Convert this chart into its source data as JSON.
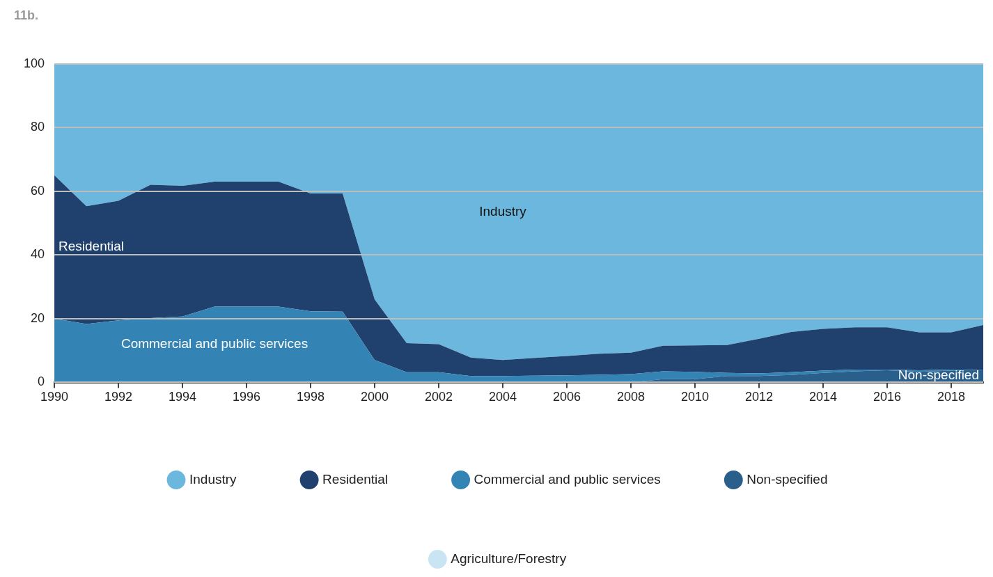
{
  "chart_data": {
    "type": "area",
    "title": "11b.",
    "stacked": true,
    "x": [
      1990,
      1991,
      1992,
      1993,
      1994,
      1995,
      1996,
      1997,
      1998,
      1999,
      2000,
      2001,
      2002,
      2003,
      2004,
      2005,
      2006,
      2007,
      2008,
      2009,
      2010,
      2011,
      2012,
      2013,
      2014,
      2015,
      2016,
      2017,
      2018,
      2019
    ],
    "xlim": [
      1990,
      2019
    ],
    "xticks": [
      1990,
      1992,
      1994,
      1996,
      1998,
      2000,
      2002,
      2004,
      2006,
      2008,
      2010,
      2012,
      2014,
      2016,
      2018
    ],
    "ylim": [
      0,
      100
    ],
    "yticks": [
      0,
      20,
      40,
      60,
      80,
      100
    ],
    "grid": "y",
    "legend": "bottom",
    "series": [
      {
        "name": "Agriculture/Forestry",
        "color": "#c9e5f4",
        "values": [
          null,
          null,
          null,
          null,
          null,
          null,
          null,
          null,
          null,
          null,
          null,
          null,
          null,
          null,
          null,
          null,
          null,
          null,
          null,
          null,
          null,
          null,
          null,
          null,
          null,
          null,
          null,
          null,
          null,
          null
        ]
      },
      {
        "name": "Non-specified",
        "color": "#2a5f8c",
        "values": [
          0,
          0,
          0,
          0,
          0,
          0,
          0,
          0,
          0,
          0,
          0,
          0,
          0,
          0,
          0,
          0,
          0,
          0,
          0,
          1,
          1,
          2,
          2,
          2.3,
          3,
          3.5,
          3.8,
          3.3,
          3.7,
          4
        ]
      },
      {
        "name": "Commercial and public services",
        "color": "#3383b4",
        "values": [
          20,
          18.3,
          19.5,
          20.2,
          20.7,
          23.8,
          23.8,
          23.8,
          22.3,
          22.2,
          7,
          3.2,
          3.2,
          2,
          2,
          2.1,
          2.2,
          2.4,
          2.6,
          2.5,
          2.3,
          1,
          0.8,
          0.9,
          0.7,
          0.5,
          0.2,
          0.5,
          0.3,
          0
        ]
      },
      {
        "name": "Residential",
        "color": "#20416e",
        "values": [
          45,
          37,
          37.5,
          41.8,
          41,
          39.2,
          39.2,
          39.2,
          37,
          37.1,
          19,
          9.1,
          8.8,
          5.8,
          5,
          5.6,
          6.1,
          6.6,
          6.7,
          8,
          8.3,
          8.7,
          10.9,
          12.6,
          13.1,
          13.3,
          13.3,
          11.9,
          11.7,
          14
        ]
      },
      {
        "name": "Industry",
        "color": "#6cb7de",
        "values": [
          35,
          44.7,
          43,
          38,
          38.3,
          37,
          37,
          37,
          40.7,
          40.7,
          74,
          87.7,
          88,
          92.2,
          93,
          92.3,
          91.7,
          91,
          90.7,
          88.5,
          88.4,
          88.3,
          86.3,
          84.2,
          83.2,
          82.7,
          82.7,
          84.3,
          84.3,
          82
        ]
      }
    ]
  }
}
